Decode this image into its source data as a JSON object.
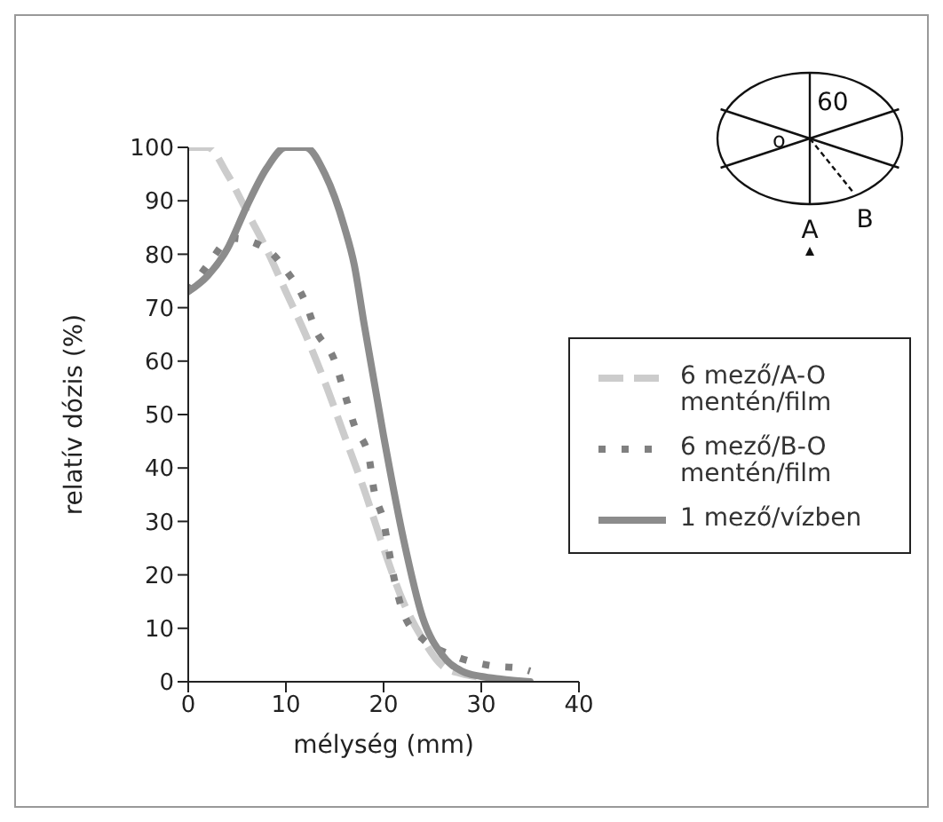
{
  "chart_data": {
    "type": "line",
    "xlabel": "mélység (mm)",
    "ylabel": "relatív dózis (%)",
    "xlim": [
      0,
      40
    ],
    "xticks": [
      0,
      10,
      20,
      30,
      40
    ],
    "ylim": [
      0,
      100
    ],
    "yticks": [
      0,
      10,
      20,
      30,
      40,
      50,
      60,
      70,
      80,
      90,
      100
    ],
    "grid": false,
    "legend": "right",
    "marker": "none",
    "annotations": [
      "o",
      "60",
      "A",
      "B"
    ],
    "series": [
      {
        "name": "6 mező/A-O mentén/film",
        "color": "#cccccc",
        "line_style": "dashed",
        "x": [
          0,
          1,
          2,
          4,
          6,
          8,
          10,
          12,
          14,
          16,
          18,
          20,
          22,
          24,
          26,
          28,
          30,
          32,
          34
        ],
        "values": [
          100,
          100,
          100,
          95,
          88,
          81,
          73,
          65,
          56,
          46,
          36,
          25,
          15,
          8,
          3,
          1.5,
          0.8,
          0.3,
          0
        ]
      },
      {
        "name": "6 mező/B-O mentén/film",
        "color": "#808080",
        "line_style": "dotted",
        "x": [
          0,
          2,
          4.5,
          8,
          10,
          12,
          13,
          15,
          16,
          17,
          18.5,
          19,
          20,
          20.5,
          21,
          22,
          24,
          27,
          31,
          34,
          35
        ],
        "values": [
          73,
          78,
          83,
          81,
          77,
          71,
          66,
          60,
          54,
          48,
          42,
          36,
          30,
          25,
          20,
          13,
          8,
          5,
          3,
          2.5,
          2
        ]
      },
      {
        "name": "1 mező/vízben",
        "color": "#8c8c8c",
        "line_style": "solid",
        "x": [
          0,
          2,
          4,
          6,
          8,
          10,
          11,
          12,
          14,
          16,
          17,
          18,
          20,
          22,
          24,
          26,
          28,
          30,
          32,
          35
        ],
        "values": [
          73,
          76,
          81,
          89,
          96,
          100,
          100,
          100,
          95,
          85,
          78,
          67,
          46,
          27,
          12,
          5,
          2,
          1,
          0.5,
          0
        ]
      }
    ]
  }
}
